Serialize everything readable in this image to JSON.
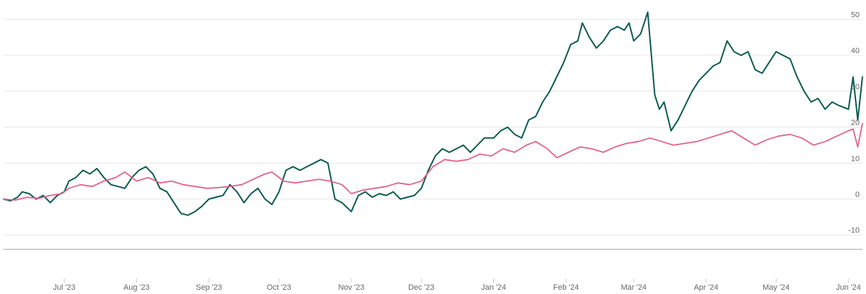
{
  "chart_data": {
    "type": "line",
    "title": "",
    "xlabel": "",
    "ylabel": "",
    "ylim": [
      -14,
      55
    ],
    "y_ticks": [
      -10,
      0,
      10,
      20,
      30,
      40,
      50
    ],
    "x_tick_labels": [
      {
        "label": "Jul '23",
        "date": "2023-07-01"
      },
      {
        "label": "Aug '23",
        "date": "2023-08-01"
      },
      {
        "label": "Sep '23",
        "date": "2023-09-01"
      },
      {
        "label": "Oct '23",
        "date": "2023-10-01"
      },
      {
        "label": "Nov '23",
        "date": "2023-11-01"
      },
      {
        "label": "Dec '23",
        "date": "2023-12-01"
      },
      {
        "label": "Jan '24",
        "date": "2024-01-01"
      },
      {
        "label": "Feb '24",
        "date": "2024-02-01"
      },
      {
        "label": "Mar '24",
        "date": "2024-03-01"
      },
      {
        "label": "Apr '24",
        "date": "2024-04-01"
      },
      {
        "label": "May '24",
        "date": "2024-05-01"
      },
      {
        "label": "Jun '24",
        "date": "2024-06-01"
      }
    ],
    "xlim": [
      "2023-06-05",
      "2024-06-07"
    ],
    "grid": true,
    "legend": "none",
    "series": [
      {
        "color": "#0b5a52",
        "points": [
          [
            "2023-06-05",
            0
          ],
          [
            "2023-06-08",
            -0.5
          ],
          [
            "2023-06-11",
            0.5
          ],
          [
            "2023-06-13",
            2
          ],
          [
            "2023-06-16",
            1.5
          ],
          [
            "2023-06-19",
            0
          ],
          [
            "2023-06-22",
            1
          ],
          [
            "2023-06-25",
            -1
          ],
          [
            "2023-06-28",
            1
          ],
          [
            "2023-07-01",
            2
          ],
          [
            "2023-07-03",
            5
          ],
          [
            "2023-07-06",
            6
          ],
          [
            "2023-07-09",
            8
          ],
          [
            "2023-07-12",
            7
          ],
          [
            "2023-07-15",
            8.5
          ],
          [
            "2023-07-18",
            6
          ],
          [
            "2023-07-21",
            4
          ],
          [
            "2023-07-24",
            3.5
          ],
          [
            "2023-07-27",
            3
          ],
          [
            "2023-07-30",
            6
          ],
          [
            "2023-08-02",
            8
          ],
          [
            "2023-08-05",
            9
          ],
          [
            "2023-08-08",
            7
          ],
          [
            "2023-08-11",
            3
          ],
          [
            "2023-08-14",
            2
          ],
          [
            "2023-08-17",
            -1
          ],
          [
            "2023-08-20",
            -4
          ],
          [
            "2023-08-23",
            -4.5
          ],
          [
            "2023-08-26",
            -3.5
          ],
          [
            "2023-08-29",
            -2
          ],
          [
            "2023-09-01",
            0
          ],
          [
            "2023-09-04",
            0.5
          ],
          [
            "2023-09-07",
            1
          ],
          [
            "2023-09-10",
            4
          ],
          [
            "2023-09-13",
            2
          ],
          [
            "2023-09-16",
            -1
          ],
          [
            "2023-09-19",
            1.5
          ],
          [
            "2023-09-22",
            3
          ],
          [
            "2023-09-25",
            0
          ],
          [
            "2023-09-28",
            -1.5
          ],
          [
            "2023-10-01",
            2
          ],
          [
            "2023-10-04",
            8
          ],
          [
            "2023-10-07",
            9
          ],
          [
            "2023-10-10",
            8
          ],
          [
            "2023-10-13",
            9
          ],
          [
            "2023-10-16",
            10
          ],
          [
            "2023-10-19",
            11
          ],
          [
            "2023-10-22",
            10
          ],
          [
            "2023-10-25",
            0
          ],
          [
            "2023-10-28",
            -1
          ],
          [
            "2023-11-01",
            -3.5
          ],
          [
            "2023-11-04",
            1
          ],
          [
            "2023-11-07",
            2
          ],
          [
            "2023-11-10",
            0.5
          ],
          [
            "2023-11-13",
            1.5
          ],
          [
            "2023-11-16",
            1
          ],
          [
            "2023-11-19",
            2
          ],
          [
            "2023-11-22",
            0
          ],
          [
            "2023-11-25",
            0.5
          ],
          [
            "2023-11-28",
            1
          ],
          [
            "2023-12-01",
            3
          ],
          [
            "2023-12-04",
            8
          ],
          [
            "2023-12-07",
            12
          ],
          [
            "2023-12-10",
            14
          ],
          [
            "2023-12-13",
            13
          ],
          [
            "2023-12-16",
            14
          ],
          [
            "2023-12-19",
            15
          ],
          [
            "2023-12-22",
            13
          ],
          [
            "2023-12-25",
            15
          ],
          [
            "2023-12-28",
            17
          ],
          [
            "2024-01-01",
            17
          ],
          [
            "2024-01-04",
            19
          ],
          [
            "2024-01-07",
            20
          ],
          [
            "2024-01-10",
            18
          ],
          [
            "2024-01-13",
            17
          ],
          [
            "2024-01-16",
            22
          ],
          [
            "2024-01-19",
            23
          ],
          [
            "2024-01-22",
            27
          ],
          [
            "2024-01-25",
            30
          ],
          [
            "2024-01-28",
            34
          ],
          [
            "2024-01-31",
            38
          ],
          [
            "2024-02-03",
            43
          ],
          [
            "2024-02-06",
            44
          ],
          [
            "2024-02-08",
            49
          ],
          [
            "2024-02-11",
            45
          ],
          [
            "2024-02-14",
            42
          ],
          [
            "2024-02-17",
            44
          ],
          [
            "2024-02-20",
            47
          ],
          [
            "2024-02-23",
            48
          ],
          [
            "2024-02-26",
            47
          ],
          [
            "2024-02-28",
            49
          ],
          [
            "2024-03-01",
            44
          ],
          [
            "2024-03-04",
            46
          ],
          [
            "2024-03-07",
            52
          ],
          [
            "2024-03-10",
            29
          ],
          [
            "2024-03-12",
            25
          ],
          [
            "2024-03-14",
            27
          ],
          [
            "2024-03-17",
            19
          ],
          [
            "2024-03-20",
            22
          ],
          [
            "2024-03-23",
            26
          ],
          [
            "2024-03-26",
            30
          ],
          [
            "2024-03-29",
            33
          ],
          [
            "2024-04-01",
            35
          ],
          [
            "2024-04-04",
            37
          ],
          [
            "2024-04-07",
            38
          ],
          [
            "2024-04-10",
            44
          ],
          [
            "2024-04-13",
            41
          ],
          [
            "2024-04-16",
            40
          ],
          [
            "2024-04-19",
            41
          ],
          [
            "2024-04-22",
            36
          ],
          [
            "2024-04-25",
            35
          ],
          [
            "2024-04-28",
            38
          ],
          [
            "2024-05-01",
            41
          ],
          [
            "2024-05-04",
            40
          ],
          [
            "2024-05-07",
            39
          ],
          [
            "2024-05-10",
            34
          ],
          [
            "2024-05-13",
            30
          ],
          [
            "2024-05-16",
            27
          ],
          [
            "2024-05-19",
            28
          ],
          [
            "2024-05-22",
            25
          ],
          [
            "2024-05-25",
            27
          ],
          [
            "2024-05-28",
            26
          ],
          [
            "2024-06-01",
            25
          ],
          [
            "2024-06-03",
            34
          ],
          [
            "2024-06-05",
            22
          ],
          [
            "2024-06-07",
            34
          ]
        ]
      },
      {
        "color": "#e0628f",
        "points": [
          [
            "2023-06-05",
            0
          ],
          [
            "2023-06-10",
            -0.3
          ],
          [
            "2023-06-15",
            0.5
          ],
          [
            "2023-06-20",
            0.2
          ],
          [
            "2023-06-25",
            1
          ],
          [
            "2023-06-30",
            1.5
          ],
          [
            "2023-07-03",
            3
          ],
          [
            "2023-07-08",
            4
          ],
          [
            "2023-07-13",
            3.5
          ],
          [
            "2023-07-18",
            5
          ],
          [
            "2023-07-23",
            6
          ],
          [
            "2023-07-27",
            7.5
          ],
          [
            "2023-08-01",
            5
          ],
          [
            "2023-08-06",
            6
          ],
          [
            "2023-08-11",
            4.5
          ],
          [
            "2023-08-16",
            5
          ],
          [
            "2023-08-21",
            4
          ],
          [
            "2023-08-26",
            3.5
          ],
          [
            "2023-08-31",
            3
          ],
          [
            "2023-09-05",
            3.2
          ],
          [
            "2023-09-10",
            3.5
          ],
          [
            "2023-09-15",
            4
          ],
          [
            "2023-09-20",
            5.5
          ],
          [
            "2023-09-25",
            7
          ],
          [
            "2023-09-28",
            7.5
          ],
          [
            "2023-10-03",
            5
          ],
          [
            "2023-10-08",
            4.5
          ],
          [
            "2023-10-13",
            5
          ],
          [
            "2023-10-18",
            5.5
          ],
          [
            "2023-10-23",
            5
          ],
          [
            "2023-10-28",
            4
          ],
          [
            "2023-11-01",
            1.5
          ],
          [
            "2023-11-06",
            2.5
          ],
          [
            "2023-11-11",
            3
          ],
          [
            "2023-11-16",
            3.5
          ],
          [
            "2023-11-21",
            4.5
          ],
          [
            "2023-11-26",
            4
          ],
          [
            "2023-12-01",
            5
          ],
          [
            "2023-12-06",
            9
          ],
          [
            "2023-12-11",
            11
          ],
          [
            "2023-12-16",
            10.5
          ],
          [
            "2023-12-21",
            11
          ],
          [
            "2023-12-26",
            12.5
          ],
          [
            "2023-12-31",
            12
          ],
          [
            "2024-01-05",
            14
          ],
          [
            "2024-01-10",
            13
          ],
          [
            "2024-01-15",
            15
          ],
          [
            "2024-01-19",
            16
          ],
          [
            "2024-01-24",
            14
          ],
          [
            "2024-01-28",
            11.5
          ],
          [
            "2024-02-02",
            13
          ],
          [
            "2024-02-07",
            14.5
          ],
          [
            "2024-02-12",
            14
          ],
          [
            "2024-02-17",
            13
          ],
          [
            "2024-02-22",
            14.5
          ],
          [
            "2024-02-27",
            15.5
          ],
          [
            "2024-03-03",
            16
          ],
          [
            "2024-03-08",
            17
          ],
          [
            "2024-03-13",
            16
          ],
          [
            "2024-03-18",
            15
          ],
          [
            "2024-03-23",
            15.5
          ],
          [
            "2024-03-28",
            16
          ],
          [
            "2024-04-02",
            17
          ],
          [
            "2024-04-07",
            18
          ],
          [
            "2024-04-12",
            19
          ],
          [
            "2024-04-17",
            17
          ],
          [
            "2024-04-22",
            15
          ],
          [
            "2024-04-27",
            16.5
          ],
          [
            "2024-05-02",
            17.5
          ],
          [
            "2024-05-07",
            18
          ],
          [
            "2024-05-12",
            17
          ],
          [
            "2024-05-17",
            15
          ],
          [
            "2024-05-22",
            16
          ],
          [
            "2024-05-27",
            17.5
          ],
          [
            "2024-06-01",
            19
          ],
          [
            "2024-06-03",
            19.5
          ],
          [
            "2024-06-05",
            14.5
          ],
          [
            "2024-06-07",
            21
          ]
        ]
      }
    ]
  }
}
